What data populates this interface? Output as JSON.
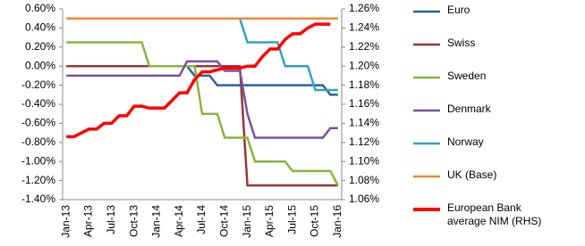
{
  "chart_data": {
    "type": "line",
    "categories": [
      "Jan-13",
      null,
      null,
      "Apr-13",
      null,
      null,
      "Jul-13",
      null,
      null,
      "Oct-13",
      null,
      null,
      "Jan-14",
      null,
      null,
      "Apr-14",
      null,
      null,
      "Jul-14",
      null,
      null,
      "Oct-14",
      null,
      null,
      "Jan-15",
      null,
      null,
      "Apr-15",
      null,
      null,
      "Jul-15",
      null,
      null,
      "Oct-15",
      null,
      null,
      "Jan-16"
    ],
    "ylim": [
      -1.4,
      0.6
    ],
    "yticks": [
      {
        "value": -1.4,
        "label": "-1.40%"
      },
      {
        "value": -1.2,
        "label": "-1.20%"
      },
      {
        "value": -1.0,
        "label": "-1.00%"
      },
      {
        "value": -0.8,
        "label": "-0.80%"
      },
      {
        "value": -0.6,
        "label": "-0.60%"
      },
      {
        "value": -0.4,
        "label": "-0.40%"
      },
      {
        "value": -0.2,
        "label": "-0.20%"
      },
      {
        "value": 0,
        "label": "0.00%"
      },
      {
        "value": 0.2,
        "label": "0.20%"
      },
      {
        "value": 0.4,
        "label": "0.40%"
      },
      {
        "value": 0.6,
        "label": "0.60%"
      }
    ],
    "y2lim": [
      1.06,
      1.26
    ],
    "y2ticks": [
      {
        "value": 1.06,
        "label": "1.06%"
      },
      {
        "value": 1.08,
        "label": "1.08%"
      },
      {
        "value": 1.1,
        "label": "1.10%"
      },
      {
        "value": 1.12,
        "label": "1.12%"
      },
      {
        "value": 1.14,
        "label": "1.14%"
      },
      {
        "value": 1.16,
        "label": "1.16%"
      },
      {
        "value": 1.18,
        "label": "1.18%"
      },
      {
        "value": 1.2,
        "label": "1.20%"
      },
      {
        "value": 1.22,
        "label": "1.22%"
      },
      {
        "value": 1.24,
        "label": "1.24%"
      },
      {
        "value": 1.26,
        "label": "1.26%"
      }
    ],
    "grid": false,
    "series": [
      {
        "name": "Euro",
        "color": "#2f5f9a",
        "values": [
          0,
          0,
          0,
          0,
          0,
          0,
          0,
          0,
          0,
          0,
          0,
          0,
          0,
          0,
          0,
          0,
          0,
          -0.1,
          -0.1,
          -0.1,
          -0.2,
          -0.2,
          -0.2,
          -0.2,
          -0.2,
          -0.2,
          -0.2,
          -0.2,
          -0.2,
          -0.2,
          -0.2,
          -0.2,
          -0.2,
          -0.2,
          -0.2,
          -0.3,
          -0.3
        ]
      },
      {
        "name": "Swiss",
        "color": "#953735",
        "values": [
          0,
          0,
          0,
          0,
          0,
          0,
          0,
          0,
          0,
          0,
          0,
          0,
          0,
          0,
          0,
          0,
          0,
          0,
          0,
          0,
          0,
          0,
          0,
          0,
          -1.25,
          -1.25,
          -1.25,
          -1.25,
          -1.25,
          -1.25,
          -1.25,
          -1.25,
          -1.25,
          -1.25,
          -1.25,
          -1.25,
          -1.25
        ]
      },
      {
        "name": "Sweden",
        "color": "#8cb43c",
        "values": [
          0.25,
          0.25,
          0.25,
          0.25,
          0.25,
          0.25,
          0.25,
          0.25,
          0.25,
          0.25,
          0.25,
          0,
          0,
          0,
          0,
          0,
          0,
          0,
          -0.5,
          -0.5,
          -0.5,
          -0.75,
          -0.75,
          -0.75,
          -0.75,
          -1.0,
          -1.0,
          -1.0,
          -1.0,
          -1.0,
          -1.1,
          -1.1,
          -1.1,
          -1.1,
          -1.1,
          -1.1,
          -1.25
        ]
      },
      {
        "name": "Denmark",
        "color": "#7a50a0",
        "values": [
          -0.1,
          -0.1,
          -0.1,
          -0.1,
          -0.1,
          -0.1,
          -0.1,
          -0.1,
          -0.1,
          -0.1,
          -0.1,
          -0.1,
          -0.1,
          -0.1,
          -0.1,
          -0.1,
          0.05,
          0.05,
          0.05,
          0.05,
          0.05,
          -0.05,
          -0.05,
          -0.05,
          -0.5,
          -0.75,
          -0.75,
          -0.75,
          -0.75,
          -0.75,
          -0.75,
          -0.75,
          -0.75,
          -0.75,
          -0.75,
          -0.65,
          -0.65
        ]
      },
      {
        "name": "Norway",
        "color": "#33a1c2",
        "values": [
          null,
          null,
          null,
          null,
          null,
          null,
          null,
          null,
          null,
          null,
          null,
          null,
          null,
          null,
          null,
          null,
          null,
          null,
          null,
          null,
          null,
          null,
          null,
          0.5,
          0.25,
          0.25,
          0.25,
          0.25,
          0.25,
          0,
          0,
          0,
          0,
          -0.25,
          -0.25,
          -0.25,
          -0.25
        ]
      },
      {
        "name": "UK (Base)",
        "color": "#f0892f",
        "values": [
          0.5,
          0.5,
          0.5,
          0.5,
          0.5,
          0.5,
          0.5,
          0.5,
          0.5,
          0.5,
          0.5,
          0.5,
          0.5,
          0.5,
          0.5,
          0.5,
          0.5,
          0.5,
          0.5,
          0.5,
          0.5,
          0.5,
          0.5,
          0.5,
          0.5,
          0.5,
          0.5,
          0.5,
          0.5,
          0.5,
          0.5,
          0.5,
          0.5,
          0.5,
          0.5,
          0.5,
          0.5
        ]
      },
      {
        "name": "European Bank average NIM (RHS)",
        "color": "#ff0000",
        "axis": "y2",
        "values": [
          1.126,
          1.126,
          1.13,
          1.134,
          1.134,
          1.14,
          1.14,
          1.148,
          1.148,
          1.158,
          1.158,
          1.156,
          1.156,
          1.156,
          1.164,
          1.172,
          1.172,
          1.186,
          1.194,
          1.194,
          1.196,
          1.198,
          1.198,
          1.198,
          1.2,
          1.2,
          1.21,
          1.218,
          1.218,
          1.228,
          1.234,
          1.234,
          1.24,
          1.244,
          1.244,
          1.244,
          null
        ]
      }
    ]
  }
}
